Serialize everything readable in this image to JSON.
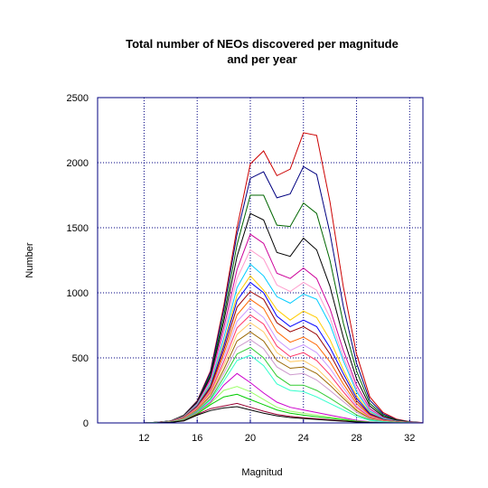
{
  "chart_data": {
    "type": "line",
    "title_line1": "Total number of NEOs discovered per magnitude",
    "title_line2": "and per year",
    "xlabel": "Magnitud",
    "ylabel": "Number",
    "xlim": [
      8.5,
      33
    ],
    "ylim": [
      0,
      2500
    ],
    "xticks": [
      12,
      16,
      20,
      24,
      28,
      32
    ],
    "yticks": [
      0,
      500,
      1000,
      1500,
      2000,
      2500
    ],
    "grid": true,
    "grid_style": "dotted",
    "frame_color": "#000080",
    "x": [
      12,
      13,
      14,
      15,
      16,
      17,
      18,
      19,
      20,
      21,
      22,
      23,
      24,
      25,
      26,
      27,
      28,
      29,
      30,
      31,
      32,
      33
    ],
    "series": [
      {
        "color": "#cc0000",
        "values": [
          0,
          5,
          15,
          60,
          170,
          400,
          900,
          1500,
          1990,
          2090,
          1900,
          1950,
          2230,
          2210,
          1700,
          1050,
          530,
          200,
          80,
          30,
          10,
          3
        ]
      },
      {
        "color": "#000080",
        "values": [
          0,
          5,
          15,
          60,
          165,
          390,
          870,
          1450,
          1880,
          1930,
          1730,
          1760,
          1970,
          1910,
          1460,
          900,
          460,
          175,
          70,
          25,
          8,
          2
        ]
      },
      {
        "color": "#006600",
        "values": [
          0,
          5,
          15,
          58,
          160,
          370,
          820,
          1370,
          1750,
          1750,
          1520,
          1510,
          1690,
          1610,
          1250,
          770,
          400,
          150,
          60,
          22,
          7,
          2
        ]
      },
      {
        "color": "#000000",
        "values": [
          0,
          5,
          14,
          55,
          155,
          355,
          780,
          1280,
          1610,
          1560,
          1310,
          1280,
          1420,
          1330,
          1050,
          660,
          340,
          130,
          50,
          18,
          6,
          2
        ]
      },
      {
        "color": "#cc0099",
        "values": [
          0,
          4,
          13,
          52,
          150,
          335,
          730,
          1180,
          1450,
          1380,
          1150,
          1110,
          1190,
          1110,
          880,
          560,
          290,
          110,
          42,
          15,
          5,
          1
        ]
      },
      {
        "color": "#ff99cc",
        "values": [
          0,
          4,
          13,
          50,
          145,
          320,
          690,
          1110,
          1330,
          1260,
          1060,
          1010,
          1080,
          1020,
          810,
          510,
          260,
          100,
          38,
          14,
          5,
          1
        ]
      },
      {
        "color": "#00ccff",
        "values": [
          0,
          4,
          12,
          48,
          140,
          305,
          650,
          1040,
          1220,
          1130,
          970,
          920,
          990,
          950,
          760,
          480,
          240,
          90,
          35,
          13,
          4,
          1
        ]
      },
      {
        "color": "#ffcc00",
        "values": [
          0,
          4,
          12,
          46,
          135,
          290,
          610,
          980,
          1130,
          1020,
          870,
          790,
          860,
          810,
          640,
          410,
          210,
          80,
          30,
          11,
          4,
          1
        ]
      },
      {
        "color": "#0000ff",
        "values": [
          0,
          4,
          11,
          44,
          130,
          280,
          590,
          940,
          1080,
          1000,
          820,
          740,
          790,
          740,
          580,
          380,
          190,
          72,
          28,
          10,
          3,
          1
        ]
      },
      {
        "color": "#990000",
        "values": [
          0,
          3,
          11,
          42,
          125,
          270,
          560,
          890,
          1010,
          950,
          770,
          700,
          740,
          680,
          530,
          340,
          170,
          65,
          25,
          9,
          3,
          1
        ]
      },
      {
        "color": "#ff6600",
        "values": [
          0,
          3,
          10,
          40,
          120,
          255,
          530,
          830,
          950,
          880,
          700,
          620,
          660,
          600,
          470,
          300,
          150,
          58,
          22,
          8,
          3,
          1
        ]
      },
      {
        "color": "#cc99ff",
        "values": [
          0,
          3,
          10,
          38,
          115,
          245,
          500,
          780,
          890,
          810,
          640,
          560,
          600,
          540,
          420,
          270,
          135,
          52,
          20,
          7,
          2,
          1
        ]
      },
      {
        "color": "#ff3366",
        "values": [
          0,
          3,
          9,
          36,
          110,
          235,
          470,
          730,
          830,
          760,
          590,
          510,
          540,
          480,
          370,
          240,
          120,
          46,
          18,
          6,
          2,
          1
        ]
      },
      {
        "color": "#ffcc66",
        "values": [
          0,
          3,
          9,
          34,
          105,
          225,
          440,
          680,
          770,
          700,
          540,
          470,
          480,
          420,
          320,
          210,
          105,
          40,
          16,
          6,
          2,
          1
        ]
      },
      {
        "color": "#996600",
        "values": [
          0,
          3,
          8,
          32,
          100,
          210,
          410,
          630,
          700,
          630,
          480,
          420,
          430,
          380,
          290,
          190,
          95,
          36,
          14,
          5,
          2,
          0
        ]
      },
      {
        "color": "#cc99cc",
        "values": [
          0,
          3,
          8,
          30,
          95,
          200,
          380,
          580,
          640,
          570,
          430,
          370,
          380,
          330,
          250,
          165,
          82,
          31,
          12,
          5,
          2,
          0
        ]
      },
      {
        "color": "#33cc33",
        "values": [
          0,
          2,
          7,
          28,
          90,
          185,
          350,
          530,
          580,
          500,
          360,
          290,
          290,
          250,
          190,
          125,
          62,
          24,
          10,
          4,
          1,
          0
        ]
      },
      {
        "color": "#33ffcc",
        "values": [
          0,
          2,
          7,
          26,
          85,
          175,
          320,
          480,
          520,
          440,
          300,
          250,
          240,
          200,
          150,
          100,
          50,
          20,
          8,
          3,
          1,
          0
        ]
      },
      {
        "color": "#cc00cc",
        "values": [
          0,
          2,
          6,
          24,
          80,
          160,
          290,
          380,
          310,
          230,
          160,
          120,
          100,
          80,
          60,
          40,
          20,
          8,
          3,
          1,
          0,
          0
        ]
      },
      {
        "color": "#99ff66",
        "values": [
          0,
          2,
          6,
          22,
          75,
          150,
          250,
          280,
          240,
          180,
          120,
          90,
          75,
          60,
          45,
          30,
          15,
          6,
          2,
          1,
          0,
          0
        ]
      },
      {
        "color": "#00cc00",
        "values": [
          0,
          2,
          5,
          20,
          70,
          140,
          200,
          220,
          180,
          140,
          100,
          75,
          60,
          48,
          36,
          24,
          12,
          5,
          2,
          1,
          0,
          0
        ]
      },
      {
        "color": "#990033",
        "values": [
          0,
          1,
          4,
          18,
          65,
          110,
          130,
          150,
          120,
          90,
          65,
          50,
          40,
          32,
          24,
          16,
          8,
          3,
          1,
          0,
          0,
          0
        ]
      },
      {
        "color": "#000000",
        "values": [
          0,
          1,
          4,
          16,
          60,
          95,
          115,
          125,
          100,
          75,
          55,
          42,
          34,
          27,
          20,
          13,
          7,
          3,
          1,
          0,
          0,
          0
        ]
      }
    ]
  }
}
